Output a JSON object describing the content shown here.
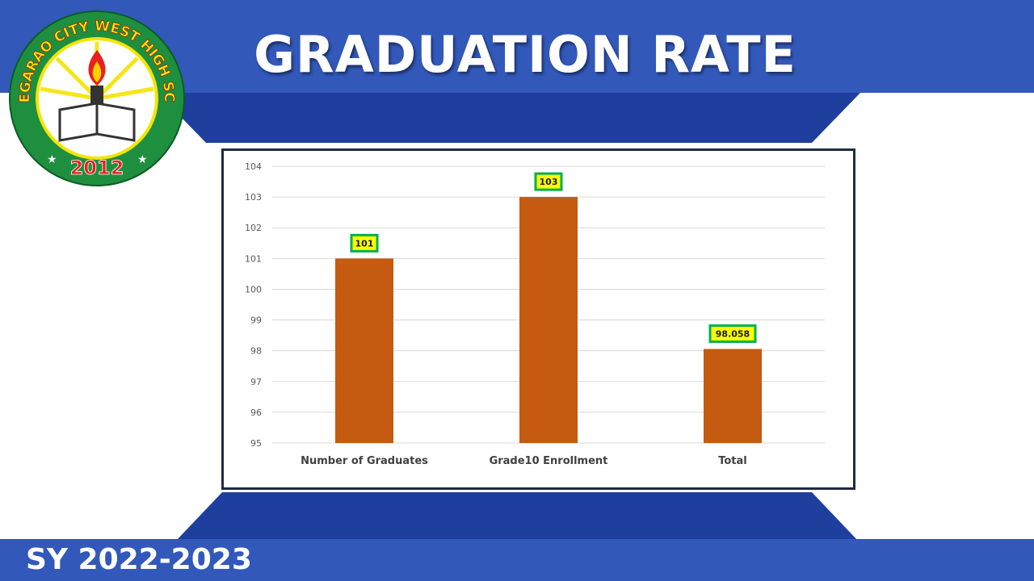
{
  "slide": {
    "title": "GRADUATION RATE",
    "school_year": "SY 2022-2023"
  },
  "logo": {
    "ring_text": "TUGUEGARAO CITY WEST HIGH SCHOOL",
    "year": "2012"
  },
  "colors": {
    "band_blue": "#3258ba",
    "band_dark_blue": "#1f3f9e",
    "bar": "#c55a11",
    "label_fill": "#ffff00",
    "label_border": "#00b050"
  },
  "chart_data": {
    "type": "bar",
    "categories": [
      "Number of Graduates",
      "Grade10 Enrollment",
      "Total"
    ],
    "values": [
      101,
      103,
      98.058
    ],
    "data_labels": [
      "101",
      "103",
      "98.058"
    ],
    "ylim": [
      95,
      104
    ],
    "yticks": [
      "95",
      "96",
      "97",
      "98",
      "99",
      "100",
      "101",
      "102",
      "103",
      "104"
    ],
    "grid": true,
    "legend": false
  }
}
